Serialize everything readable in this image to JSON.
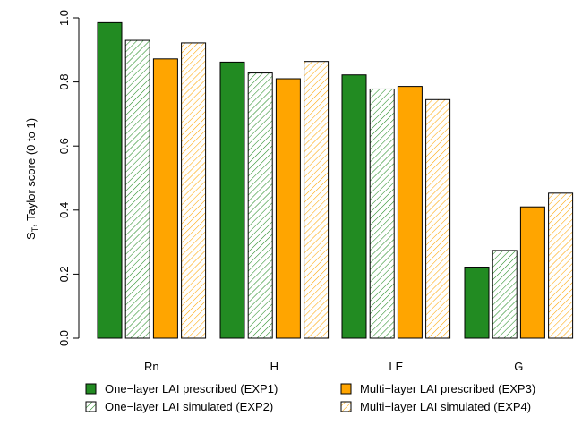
{
  "chart_data": {
    "type": "bar",
    "title": "",
    "xlabel": "",
    "ylabel_main": "S",
    "ylabel_sub": "T",
    "ylabel_rest": ", Taylor score (0 to 1)",
    "categories": [
      "Rn",
      "H",
      "LE",
      "G"
    ],
    "ylim": [
      0,
      1
    ],
    "yticks": [
      "0.0",
      "0.2",
      "0.4",
      "0.6",
      "0.8",
      "1.0"
    ],
    "grid": false,
    "legend_position": "bottom",
    "series": [
      {
        "name": "One−layer LAI prescribed (EXP1)",
        "values": [
          0.985,
          0.862,
          0.822,
          0.222
        ],
        "color": "#228B22",
        "hatched": false
      },
      {
        "name": "One−layer LAI simulated (EXP2)",
        "values": [
          0.93,
          0.828,
          0.778,
          0.274
        ],
        "color": "#228B22",
        "hatched": true
      },
      {
        "name": "Multi−layer LAI prescribed (EXP3)",
        "values": [
          0.872,
          0.81,
          0.786,
          0.41
        ],
        "color": "#FFA500",
        "hatched": false
      },
      {
        "name": "Multi−layer LAI simulated (EXP4)",
        "values": [
          0.922,
          0.864,
          0.745,
          0.453
        ],
        "color": "#FFA500",
        "hatched": true
      }
    ]
  }
}
